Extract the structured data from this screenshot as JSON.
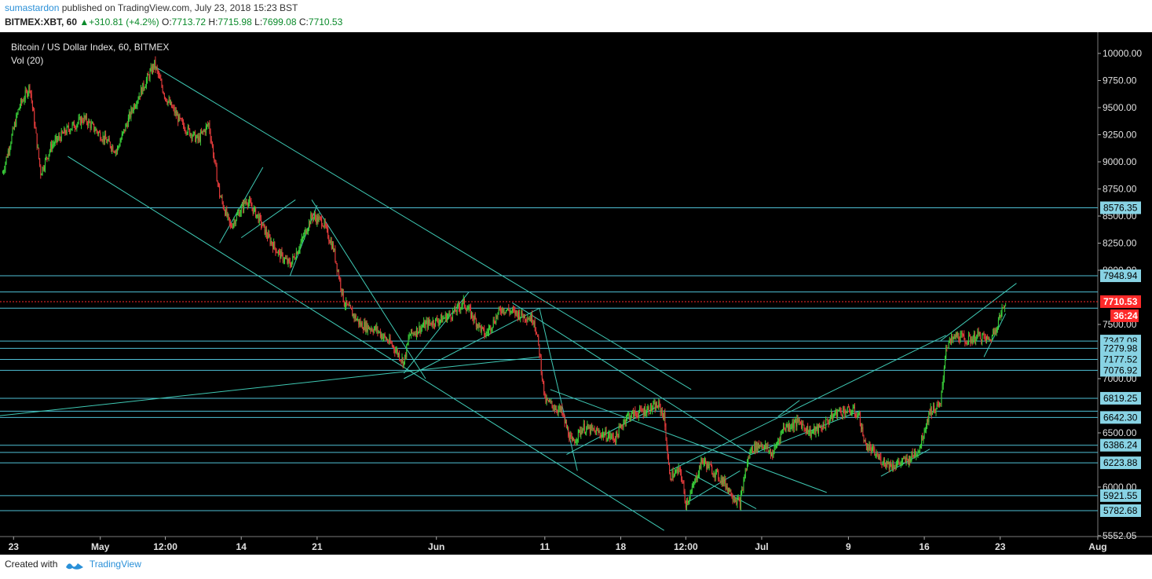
{
  "header": {
    "user": "sumastardon",
    "published": " published on TradingView.com, July 23, 2018 15:23 BST",
    "symbol": "BITMEX:XBT, 60",
    "change": "+310.81 (+4.2%)",
    "o_label": "O:",
    "o": "7713.72",
    "h_label": "H:",
    "h": "7715.98",
    "l_label": "L:",
    "l": "7699.08",
    "c_label": "C:",
    "c": "7710.53"
  },
  "footer": {
    "created_with": "Created with",
    "brand": "TradingView"
  },
  "chart_data": {
    "type": "candlestick",
    "title": "Bitcoin / US Dollar Index, 60, BITMEX",
    "subtitle": "Vol (20)",
    "ylim": [
      5550,
      10200
    ],
    "y_ticks": [
      5552.05,
      6000,
      6500,
      7000,
      7500,
      8000,
      8250,
      8500,
      8750,
      9000,
      9250,
      9500,
      9750,
      10000
    ],
    "y_tick_labels": [
      "5552.05",
      "6000.00",
      "6500.00",
      "7000.00",
      "7500.00",
      "8000.00",
      "8250.00",
      "8500.00",
      "8750.00",
      "9000.00",
      "9250.00",
      "9500.00",
      "9750.00",
      "10000.00"
    ],
    "x_ticks": [
      {
        "date": "2018-04-23",
        "label": "23"
      },
      {
        "date": "2018-05-01",
        "label": "May"
      },
      {
        "date": "2018-05-07",
        "label": "12:00"
      },
      {
        "date": "2018-05-14",
        "label": "14"
      },
      {
        "date": "2018-05-21",
        "label": "21"
      },
      {
        "date": "2018-06-01",
        "label": "Jun"
      },
      {
        "date": "2018-06-11",
        "label": "11"
      },
      {
        "date": "2018-06-18",
        "label": "18"
      },
      {
        "date": "2018-06-24",
        "label": "12:00"
      },
      {
        "date": "2018-07-01",
        "label": "Jul"
      },
      {
        "date": "2018-07-09",
        "label": "9"
      },
      {
        "date": "2018-07-16",
        "label": "16"
      },
      {
        "date": "2018-07-23",
        "label": "23"
      },
      {
        "date": "2018-08-01",
        "label": "Aug"
      }
    ],
    "last_price": 7710.53,
    "last_price_label": "7710.53",
    "countdown": "36:24",
    "horizontal_levels": [
      8576.35,
      7948.94,
      7800,
      7650,
      7347.08,
      7279.98,
      7177.52,
      7076.92,
      6819.25,
      6700,
      6642.3,
      6386.24,
      6320,
      6223.88,
      5921.55,
      5782.68
    ],
    "level_labels": [
      {
        "value": 8576.35,
        "label": "8576.35"
      },
      {
        "value": 7948.94,
        "label": "7948.94"
      },
      {
        "value": 7347.08,
        "label": "7347.08"
      },
      {
        "value": 7279.98,
        "label": "7279.98"
      },
      {
        "value": 7177.52,
        "label": "7177.52"
      },
      {
        "value": 7076.92,
        "label": "7076.92"
      },
      {
        "value": 6819.25,
        "label": "6819.25"
      },
      {
        "value": 6642.3,
        "label": "6642.30"
      },
      {
        "value": 6386.24,
        "label": "6386.24"
      },
      {
        "value": 6223.88,
        "label": "6223.88"
      },
      {
        "value": 5921.55,
        "label": "5921.55"
      },
      {
        "value": 5782.68,
        "label": "5782.68"
      }
    ],
    "price_path": [
      [
        "2018-04-22T00:00",
        8900
      ],
      [
        "2018-04-23T12:00",
        9500
      ],
      [
        "2018-04-24T12:00",
        9700
      ],
      [
        "2018-04-25T12:00",
        8900
      ],
      [
        "2018-04-26T12:00",
        9150
      ],
      [
        "2018-04-28T00:00",
        9300
      ],
      [
        "2018-04-29T12:00",
        9400
      ],
      [
        "2018-05-01T00:00",
        9250
      ],
      [
        "2018-05-02T12:00",
        9100
      ],
      [
        "2018-05-04T00:00",
        9500
      ],
      [
        "2018-05-05T12:00",
        9800
      ],
      [
        "2018-05-06T00:00",
        9900
      ],
      [
        "2018-05-07T00:00",
        9600
      ],
      [
        "2018-05-08T12:00",
        9350
      ],
      [
        "2018-05-10T00:00",
        9200
      ],
      [
        "2018-05-11T00:00",
        9350
      ],
      [
        "2018-05-12T00:00",
        8700
      ],
      [
        "2018-05-13T00:00",
        8400
      ],
      [
        "2018-05-14T12:00",
        8650
      ],
      [
        "2018-05-15T12:00",
        8500
      ],
      [
        "2018-05-16T12:00",
        8300
      ],
      [
        "2018-05-17T12:00",
        8150
      ],
      [
        "2018-05-18T12:00",
        8050
      ],
      [
        "2018-05-19T12:00",
        8250
      ],
      [
        "2018-05-20T12:00",
        8500
      ],
      [
        "2018-05-21T12:00",
        8450
      ],
      [
        "2018-05-22T12:00",
        8200
      ],
      [
        "2018-05-23T12:00",
        7700
      ],
      [
        "2018-05-25T00:00",
        7500
      ],
      [
        "2018-05-26T12:00",
        7450
      ],
      [
        "2018-05-28T00:00",
        7300
      ],
      [
        "2018-05-29T00:00",
        7150
      ],
      [
        "2018-05-29T12:00",
        7400
      ],
      [
        "2018-05-31T00:00",
        7500
      ],
      [
        "2018-06-01T12:00",
        7550
      ],
      [
        "2018-06-02T12:00",
        7600
      ],
      [
        "2018-06-03T12:00",
        7700
      ],
      [
        "2018-06-04T12:00",
        7550
      ],
      [
        "2018-06-05T12:00",
        7400
      ],
      [
        "2018-06-07T00:00",
        7650
      ],
      [
        "2018-06-08T12:00",
        7600
      ],
      [
        "2018-06-10T00:00",
        7550
      ],
      [
        "2018-06-10T12:00",
        7250
      ],
      [
        "2018-06-11T00:00",
        6800
      ],
      [
        "2018-06-12T12:00",
        6700
      ],
      [
        "2018-06-13T12:00",
        6400
      ],
      [
        "2018-06-14T12:00",
        6550
      ],
      [
        "2018-06-16T00:00",
        6500
      ],
      [
        "2018-06-17T12:00",
        6450
      ],
      [
        "2018-06-18T12:00",
        6650
      ],
      [
        "2018-06-20T00:00",
        6700
      ],
      [
        "2018-06-21T12:00",
        6750
      ],
      [
        "2018-06-22T00:00",
        6650
      ],
      [
        "2018-06-22T12:00",
        6100
      ],
      [
        "2018-06-23T12:00",
        6150
      ],
      [
        "2018-06-24T00:00",
        5850
      ],
      [
        "2018-06-24T12:00",
        5950
      ],
      [
        "2018-06-25T12:00",
        6250
      ],
      [
        "2018-06-26T12:00",
        6150
      ],
      [
        "2018-06-27T12:00",
        6050
      ],
      [
        "2018-06-28T12:00",
        5900
      ],
      [
        "2018-06-29T00:00",
        5850
      ],
      [
        "2018-06-29T12:00",
        6150
      ],
      [
        "2018-06-30T00:00",
        6350
      ],
      [
        "2018-07-01T00:00",
        6400
      ],
      [
        "2018-07-02T00:00",
        6300
      ],
      [
        "2018-07-03T00:00",
        6550
      ],
      [
        "2018-07-04T12:00",
        6600
      ],
      [
        "2018-07-05T12:00",
        6500
      ],
      [
        "2018-07-06T12:00",
        6550
      ],
      [
        "2018-07-08T00:00",
        6700
      ],
      [
        "2018-07-09T12:00",
        6700
      ],
      [
        "2018-07-10T00:00",
        6650
      ],
      [
        "2018-07-10T12:00",
        6400
      ],
      [
        "2018-07-12T00:00",
        6250
      ],
      [
        "2018-07-13T00:00",
        6200
      ],
      [
        "2018-07-14T12:00",
        6250
      ],
      [
        "2018-07-15T12:00",
        6350
      ],
      [
        "2018-07-16T12:00",
        6700
      ],
      [
        "2018-07-17T12:00",
        6750
      ],
      [
        "2018-07-18T00:00",
        7300
      ],
      [
        "2018-07-19T00:00",
        7400
      ],
      [
        "2018-07-20T00:00",
        7350
      ],
      [
        "2018-07-21T00:00",
        7400
      ],
      [
        "2018-07-22T00:00",
        7350
      ],
      [
        "2018-07-22T12:00",
        7450
      ],
      [
        "2018-07-23T12:00",
        7710
      ]
    ],
    "trend_lines": [
      [
        [
          "2018-05-06T00:00",
          9880
        ],
        [
          "2018-06-24T12:00",
          6900
        ]
      ],
      [
        [
          "2018-04-28T00:00",
          9050
        ],
        [
          "2018-06-22T00:00",
          5600
        ]
      ],
      [
        [
          "2018-05-12T00:00",
          8250
        ],
        [
          "2018-05-16T00:00",
          8950
        ]
      ],
      [
        [
          "2018-05-14T00:00",
          8300
        ],
        [
          "2018-05-19T00:00",
          8650
        ]
      ],
      [
        [
          "2018-05-18T12:00",
          7950
        ],
        [
          "2018-05-21T00:00",
          8600
        ]
      ],
      [
        [
          "2018-05-20T12:00",
          8650
        ],
        [
          "2018-05-31T00:00",
          7000
        ]
      ],
      [
        [
          "2018-05-29T00:00",
          7050
        ],
        [
          "2018-06-04T00:00",
          7800
        ]
      ],
      [
        [
          "2018-05-29T00:00",
          7000
        ],
        [
          "2018-06-10T12:00",
          7650
        ]
      ],
      [
        [
          "2018-04-21T00:00",
          6650
        ],
        [
          "2018-06-10T12:00",
          7200
        ]
      ],
      [
        [
          "2018-06-08T00:00",
          7700
        ],
        [
          "2018-06-30T00:00",
          6300
        ]
      ],
      [
        [
          "2018-06-10T12:00",
          7650
        ],
        [
          "2018-06-14T00:00",
          6150
        ]
      ],
      [
        [
          "2018-06-11T12:00",
          6900
        ],
        [
          "2018-07-07T00:00",
          5950
        ]
      ],
      [
        [
          "2018-06-13T00:00",
          6300
        ],
        [
          "2018-06-21T12:00",
          6750
        ]
      ],
      [
        [
          "2018-06-22T12:00",
          6150
        ],
        [
          "2018-07-18T00:00",
          7400
        ]
      ],
      [
        [
          "2018-06-24T00:00",
          5850
        ],
        [
          "2018-06-29T00:00",
          6150
        ]
      ],
      [
        [
          "2018-06-24T00:00",
          6150
        ],
        [
          "2018-06-30T12:00",
          5800
        ]
      ],
      [
        [
          "2018-06-30T00:00",
          6300
        ],
        [
          "2018-07-10T00:00",
          6700
        ]
      ],
      [
        [
          "2018-07-02T12:00",
          6650
        ],
        [
          "2018-07-04T12:00",
          6800
        ]
      ],
      [
        [
          "2018-07-12T00:00",
          6100
        ],
        [
          "2018-07-16T12:00",
          6350
        ]
      ],
      [
        [
          "2018-07-17T12:00",
          7350
        ],
        [
          "2018-07-24T12:00",
          7880
        ]
      ],
      [
        [
          "2018-07-21T12:00",
          7200
        ],
        [
          "2018-07-23T12:00",
          7600
        ]
      ]
    ]
  }
}
